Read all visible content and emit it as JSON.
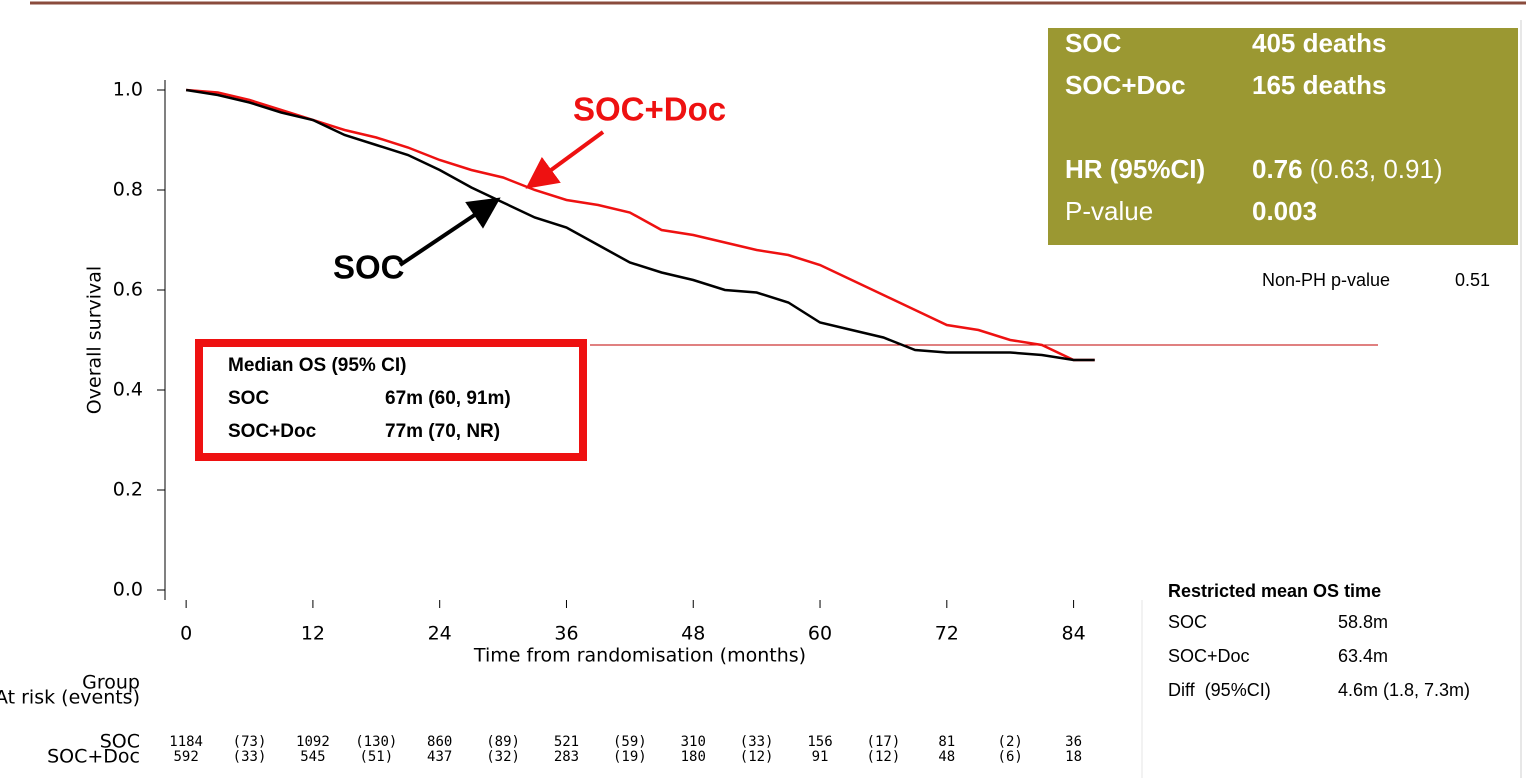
{
  "chart_data": {
    "type": "line",
    "xlabel": "Time from randomisation (months)",
    "ylabel": "Overall survival",
    "x": [
      0,
      3,
      6,
      9,
      12,
      15,
      18,
      21,
      24,
      27,
      30,
      33,
      36,
      39,
      42,
      45,
      48,
      51,
      54,
      57,
      60,
      63,
      66,
      69,
      72,
      75,
      78,
      81,
      84,
      86
    ],
    "series": [
      {
        "name": "SOC",
        "color": "#000000",
        "values": [
          1.0,
          0.99,
          0.975,
          0.955,
          0.94,
          0.91,
          0.89,
          0.87,
          0.84,
          0.805,
          0.775,
          0.745,
          0.725,
          0.69,
          0.655,
          0.635,
          0.62,
          0.6,
          0.595,
          0.575,
          0.535,
          0.52,
          0.505,
          0.48,
          0.475,
          0.475,
          0.475,
          0.47,
          0.46,
          0.46
        ]
      },
      {
        "name": "SOC+Doc",
        "color": "#ee1111",
        "values": [
          1.0,
          0.995,
          0.98,
          0.96,
          0.94,
          0.92,
          0.905,
          0.885,
          0.86,
          0.84,
          0.825,
          0.8,
          0.78,
          0.77,
          0.755,
          0.72,
          0.71,
          0.695,
          0.68,
          0.67,
          0.65,
          0.62,
          0.59,
          0.56,
          0.53,
          0.52,
          0.5,
          0.49,
          0.46,
          0.46
        ]
      }
    ],
    "xlim": [
      -2,
      86.5
    ],
    "ylim": [
      -0.02,
      1.02
    ],
    "xticks": [
      0,
      12,
      24,
      36,
      48,
      60,
      72,
      84
    ],
    "yticks": [
      {
        "value": 0,
        "label": "0.0"
      },
      0.2,
      0.4,
      0.6,
      0.8,
      {
        "value": 1,
        "label": "1.0"
      }
    ],
    "reference_line": {
      "value": 0.49,
      "color": "#c00000"
    },
    "median_box": {
      "title": "Median OS (95% CI)",
      "rows": [
        [
          "SOC",
          "67m (60, 91m)"
        ],
        [
          "SOC+Doc",
          "77m (70, NR)"
        ]
      ]
    },
    "stats_box": {
      "deaths": [
        [
          "SOC",
          "405 deaths"
        ],
        [
          "SOC+Doc",
          "165 deaths"
        ]
      ],
      "hr_label": "HR (95%CI)",
      "hr": "0.76",
      "hr_ci": "(0.63, 0.91)",
      "p_label": "P-value",
      "p": "0.003"
    },
    "non_ph": [
      "Non-PH p-value",
      "0.51"
    ],
    "restricted_mean": {
      "title": "Restricted mean OS time",
      "rows": [
        [
          "SOC",
          "58.8m"
        ],
        [
          "SOC+Doc",
          "63.4m"
        ],
        [
          "Diff  (95%CI)",
          "4.6m (1.8, 7.3m)"
        ]
      ]
    },
    "at_risk": {
      "header": [
        "Group",
        "At risk (events)"
      ],
      "rows": [
        {
          "name": "SOC",
          "values": [
            "1184",
            "(73)",
            "1092",
            "(130)",
            "860",
            "(89)",
            "521",
            "(59)",
            "310",
            "(33)",
            "156",
            "(17)",
            "81",
            "(2)",
            "36"
          ]
        },
        {
          "name": "SOC+Doc",
          "values": [
            "592",
            "(33)",
            "545",
            "(51)",
            "437",
            "(32)",
            "283",
            "(19)",
            "180",
            "(12)",
            "91",
            "(12)",
            "48",
            "(6)",
            "18"
          ]
        }
      ]
    }
  }
}
